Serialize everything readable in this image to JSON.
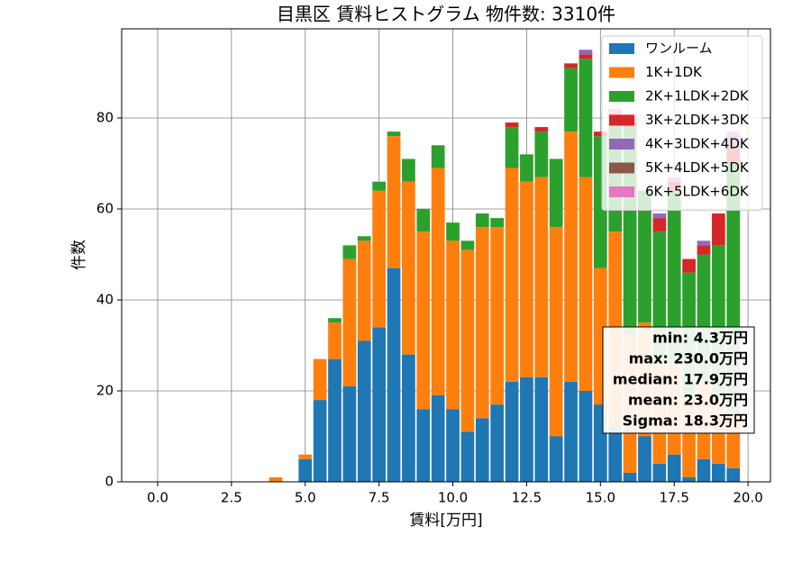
{
  "chart_data": {
    "type": "stacked-histogram",
    "title": "目黒区 賃料ヒストグラム  物件数: 3310件",
    "xlabel": "賃料[万円]",
    "ylabel": "件数",
    "bins": [
      -0.25,
      0.25,
      0.75,
      1.25,
      1.75,
      2.25,
      2.75,
      3.25,
      3.75,
      4.25,
      4.75,
      5.25,
      5.75,
      6.25,
      6.75,
      7.25,
      7.75,
      8.25,
      8.75,
      9.25,
      9.75,
      10.25,
      10.75,
      11.25,
      11.75,
      12.25,
      12.75,
      13.25,
      13.75,
      14.25,
      14.75,
      15.25,
      15.75,
      16.25,
      16.75,
      17.25,
      17.75,
      18.25,
      18.75,
      19.25,
      19.75
    ],
    "series": [
      {
        "name": "ワンルーム",
        "color": "#1f77b4",
        "values": [
          0,
          0,
          0,
          0,
          0,
          0,
          0,
          0,
          0,
          0,
          5,
          18,
          27,
          21,
          31,
          34,
          47,
          28,
          16,
          19,
          16,
          11,
          14,
          17,
          22,
          23,
          23,
          10,
          22,
          20,
          17,
          12,
          2,
          10,
          4,
          6,
          1,
          5,
          4,
          3
        ]
      },
      {
        "name": "1K+1DK",
        "color": "#ff7f0e",
        "values": [
          0,
          0,
          0,
          0,
          0,
          0,
          0,
          0,
          1,
          0,
          1,
          9,
          8,
          28,
          22,
          30,
          29,
          38,
          39,
          50,
          37,
          40,
          42,
          39,
          47,
          43,
          44,
          46,
          55,
          47,
          30,
          43,
          30,
          25,
          22,
          20,
          18,
          17,
          15,
          12
        ]
      },
      {
        "name": "2K+1LDK+2DK",
        "color": "#2ca02c",
        "values": [
          0,
          0,
          0,
          0,
          0,
          0,
          0,
          0,
          0,
          0,
          0,
          0,
          1,
          3,
          1,
          2,
          1,
          5,
          5,
          5,
          4,
          2,
          3,
          2,
          9,
          6,
          10,
          15,
          14,
          26,
          29,
          25,
          46,
          29,
          29,
          38,
          27,
          28,
          33,
          55
        ]
      },
      {
        "name": "3K+2LDK+3DK",
        "color": "#d62728",
        "values": [
          0,
          0,
          0,
          0,
          0,
          0,
          0,
          0,
          0,
          0,
          0,
          0,
          0,
          0,
          0,
          0,
          0,
          0,
          0,
          0,
          0,
          0,
          0,
          0,
          1,
          0,
          1,
          0,
          1,
          1,
          1,
          1,
          2,
          0,
          3,
          2,
          3,
          2,
          7,
          4
        ]
      },
      {
        "name": "4K+3LDK+4DK",
        "color": "#9467bd",
        "values": [
          0,
          0,
          0,
          0,
          0,
          0,
          0,
          0,
          0,
          0,
          0,
          0,
          0,
          0,
          0,
          0,
          0,
          0,
          0,
          0,
          0,
          0,
          0,
          0,
          0,
          0,
          0,
          0,
          0,
          1,
          0,
          0,
          0,
          0,
          1,
          0,
          0,
          1,
          0,
          2
        ]
      },
      {
        "name": "5K+4LDK+5DK",
        "color": "#8c564b",
        "values": [
          0,
          0,
          0,
          0,
          0,
          0,
          0,
          0,
          0,
          0,
          0,
          0,
          0,
          0,
          0,
          0,
          0,
          0,
          0,
          0,
          0,
          0,
          0,
          0,
          0,
          0,
          0,
          0,
          0,
          0,
          0,
          0,
          0,
          0,
          0,
          0,
          0,
          0,
          0,
          0
        ]
      },
      {
        "name": "6K+5LDK+6DK",
        "color": "#e377c2",
        "values": [
          0,
          0,
          0,
          0,
          0,
          0,
          0,
          0,
          0,
          0,
          0,
          0,
          0,
          0,
          0,
          0,
          0,
          0,
          0,
          0,
          0,
          0,
          0,
          0,
          0,
          0,
          0,
          0,
          0,
          0,
          0,
          1,
          1,
          0,
          0,
          1,
          0,
          0,
          0,
          1
        ]
      }
    ],
    "stats": [
      "min: 4.3万円",
      "max: 230.0万円",
      "median: 17.9万円",
      "mean: 23.0万円",
      "Sigma: 18.3万円"
    ],
    "xlim": [
      -1.22,
      20.76
    ],
    "ylim": [
      0,
      99.6
    ],
    "xticks": [
      {
        "value": 0,
        "label": "0.0"
      },
      {
        "value": 2.5,
        "label": "2.5"
      },
      {
        "value": 5,
        "label": "5.0"
      },
      {
        "value": 7.5,
        "label": "7.5"
      },
      {
        "value": 10,
        "label": "10.0"
      },
      {
        "value": 12.5,
        "label": "12.5"
      },
      {
        "value": 15,
        "label": "15.0"
      },
      {
        "value": 17.5,
        "label": "17.5"
      },
      {
        "value": 20,
        "label": "20.0"
      }
    ],
    "yticks": [
      0,
      20,
      40,
      60,
      80
    ],
    "grid": true,
    "legend": "upper-right"
  }
}
